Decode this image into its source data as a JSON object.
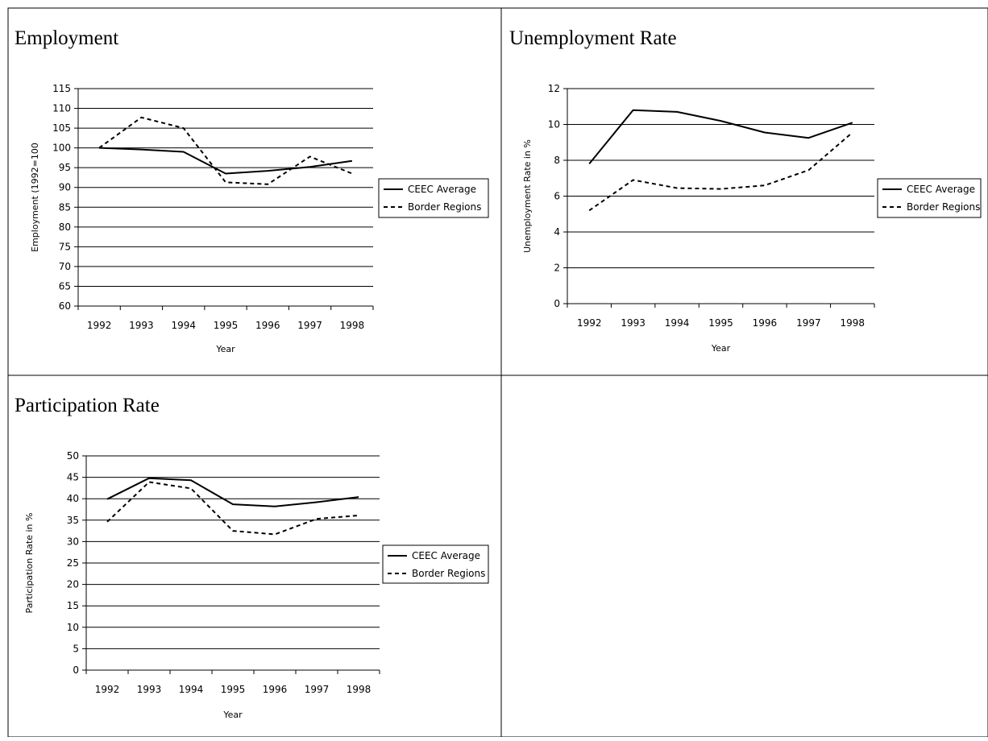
{
  "chart_data": [
    {
      "type": "line",
      "title": "Employment",
      "xlabel": "Year",
      "ylabel": "Employment (1992=100",
      "categories": [
        "1992",
        "1993",
        "1994",
        "1995",
        "1996",
        "1997",
        "1998"
      ],
      "ylim": [
        60,
        115
      ],
      "yticks": [
        60,
        65,
        70,
        75,
        80,
        85,
        90,
        95,
        100,
        105,
        110,
        115
      ],
      "grid": true,
      "legend": "right",
      "series": [
        {
          "name": "CEEC Average",
          "style": "solid",
          "values": [
            100,
            99.6,
            99,
            93.5,
            94.2,
            95.2,
            96.7
          ]
        },
        {
          "name": "Border Regions",
          "style": "dashed",
          "values": [
            100,
            107.7,
            105,
            91.3,
            90.8,
            97.8,
            93.5
          ]
        }
      ]
    },
    {
      "type": "line",
      "title": "Unemployment Rate",
      "xlabel": "Year",
      "ylabel": "Unemployment Rate in %",
      "categories": [
        "1992",
        "1993",
        "1994",
        "1995",
        "1996",
        "1997",
        "1998"
      ],
      "ylim": [
        0,
        12
      ],
      "yticks": [
        0,
        2,
        4,
        6,
        8,
        10,
        12
      ],
      "grid": true,
      "legend": "right",
      "series": [
        {
          "name": "CEEC Average",
          "style": "solid",
          "values": [
            7.8,
            10.8,
            10.7,
            10.2,
            9.55,
            9.25,
            10.1
          ]
        },
        {
          "name": "Border Regions",
          "style": "dashed",
          "values": [
            5.2,
            6.9,
            6.45,
            6.4,
            6.6,
            7.45,
            9.55
          ]
        }
      ]
    },
    {
      "type": "line",
      "title": "Participation Rate",
      "xlabel": "Year",
      "ylabel": "Participation Rate in %",
      "categories": [
        "1992",
        "1993",
        "1994",
        "1995",
        "1996",
        "1997",
        "1998"
      ],
      "ylim": [
        0,
        50
      ],
      "yticks": [
        0,
        5,
        10,
        15,
        20,
        25,
        30,
        35,
        40,
        45,
        50
      ],
      "grid": true,
      "legend": "right",
      "series": [
        {
          "name": "CEEC Average",
          "style": "solid",
          "values": [
            39.9,
            44.8,
            44.3,
            38.7,
            38.2,
            39.2,
            40.4
          ]
        },
        {
          "name": "Border Regions",
          "style": "dashed",
          "values": [
            34.6,
            43.9,
            42.4,
            32.5,
            31.7,
            35.3,
            36.1
          ]
        }
      ]
    }
  ]
}
